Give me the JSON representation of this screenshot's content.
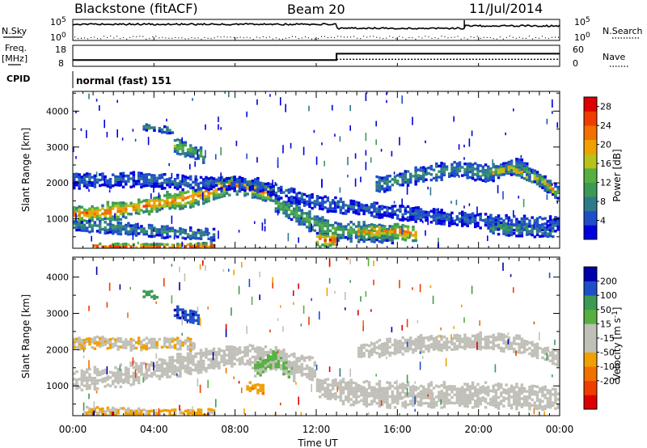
{
  "header": {
    "station": "Blackstone (fitACF)",
    "beam": "Beam 20",
    "date": "11/Jul/2014"
  },
  "strip_labels": {
    "nsky": "N.Sky",
    "nsearch": "N.Search",
    "freq": "Freq.",
    "mhz": "[MHz]",
    "nave": "Nave",
    "cpid": "CPID",
    "cpid_value": "normal (fast) 151"
  },
  "strips": {
    "noise_ticks_left": [
      "10^5",
      "10^0"
    ],
    "noise_ticks_right": [
      "10^5",
      "10^0"
    ],
    "freq_ticks": [
      "18",
      "8"
    ],
    "nave_ticks": [
      "60",
      "0"
    ],
    "freq_profile": {
      "x_hours": [
        0,
        13,
        13,
        24
      ],
      "freq_mhz": [
        11,
        11,
        14,
        14
      ]
    },
    "nave_profile": {
      "x_hours": [
        13,
        24
      ],
      "nave": [
        20,
        20
      ]
    }
  },
  "colors": {
    "power_scale": [
      "#0000dd",
      "#1e4fc8",
      "#2e7a8a",
      "#3c9a55",
      "#55b040",
      "#b8c21a",
      "#f0a000",
      "#f07000",
      "#f03c00",
      "#dd0000"
    ],
    "velocity_scale": [
      "#dd0000",
      "#f03c00",
      "#f07000",
      "#f0a000",
      "#c0c0b8",
      "#c0c0b8",
      "#55b040",
      "#3c9a55",
      "#1e4fc8",
      "#0000aa"
    ]
  },
  "chart_data": [
    {
      "type": "heatmap",
      "variable": "power",
      "ylabel": "Slant Range [km]",
      "xlabel": "Time UT",
      "xlim": [
        0,
        24
      ],
      "ylim": [
        180,
        4550
      ],
      "x_tick_labels": [
        "00:00",
        "04:00",
        "08:00",
        "12:00",
        "16:00",
        "20:00",
        "00:00"
      ],
      "y_ticks": [
        1000,
        2000,
        3000,
        4000
      ],
      "colorbar_label": "Power [dB]",
      "colorbar_ticks": [
        "4",
        "8",
        "12",
        "16",
        "20",
        "24",
        "28"
      ],
      "colorbar_range": [
        0,
        30
      ],
      "bands": [
        {
          "x_hours": [
            0,
            2,
            4,
            6,
            7,
            8,
            10
          ],
          "y_km": [
            1150,
            1250,
            1450,
            1650,
            1850,
            2000,
            1700
          ],
          "half_km": 220,
          "level": 23
        },
        {
          "x_hours": [
            0,
            2,
            4,
            5.5,
            7
          ],
          "y_km": [
            850,
            800,
            700,
            650,
            600
          ],
          "half_km": 140,
          "level": 9
        },
        {
          "x_hours": [
            10,
            11,
            12,
            13,
            14,
            15,
            16
          ],
          "y_km": [
            1500,
            1200,
            900,
            700,
            700,
            650,
            650
          ],
          "half_km": 240,
          "level": 13
        },
        {
          "x_hours": [
            12,
            13
          ],
          "y_km": [
            450,
            450
          ],
          "half_km": 180,
          "level": 27
        },
        {
          "x_hours": [
            14,
            15,
            16,
            17
          ],
          "y_km": [
            650,
            700,
            700,
            600
          ],
          "half_km": 170,
          "level": 24
        },
        {
          "x_hours": [
            0,
            3,
            6,
            9,
            12,
            15,
            18,
            21,
            24
          ],
          "y_km": [
            2100,
            2150,
            2050,
            2000,
            1500,
            1300,
            1100,
            950,
            900
          ],
          "half_km": 180,
          "level": 6
        },
        {
          "x_hours": [
            15,
            17,
            19,
            20.5,
            22,
            23,
            24
          ],
          "y_km": [
            2000,
            2250,
            2450,
            2300,
            2550,
            2150,
            1750
          ],
          "half_km": 200,
          "level": 9
        },
        {
          "x_hours": [
            20.5,
            21.5,
            22.5,
            23.3,
            24
          ],
          "y_km": [
            2300,
            2450,
            2250,
            2050,
            1700
          ],
          "half_km": 120,
          "level": 21
        },
        {
          "x_hours": [
            1,
            3,
            5,
            6,
            7
          ],
          "y_km": [
            280,
            260,
            260,
            270,
            300
          ],
          "half_km": 90,
          "level": 25
        },
        {
          "x_hours": [
            3.5,
            5
          ],
          "y_km": [
            3600,
            3500
          ],
          "half_km": 80,
          "level": 10
        },
        {
          "x_hours": [
            5,
            6.5
          ],
          "y_km": [
            3100,
            2800
          ],
          "half_km": 180,
          "level": 14
        },
        {
          "x_hours": [
            20.5,
            23.8
          ],
          "y_km": [
            800,
            700
          ],
          "half_km": 160,
          "level": 10
        }
      ]
    },
    {
      "type": "heatmap",
      "variable": "velocity",
      "ylabel": "Slant Range [km]",
      "xlabel": "Time UT",
      "xlim": [
        0,
        24
      ],
      "ylim": [
        180,
        4550
      ],
      "x_tick_labels": [
        "00:00",
        "04:00",
        "08:00",
        "12:00",
        "16:00",
        "20:00",
        "00:00"
      ],
      "y_ticks": [
        1000,
        2000,
        3000,
        4000
      ],
      "colorbar_label": "Velocity [m s^-1]",
      "colorbar_ticks": [
        "200",
        "100",
        "50",
        "15",
        "-15",
        "-50",
        "-100",
        "-200"
      ],
      "colorbar_range": [
        -250,
        250
      ],
      "bands": [
        {
          "x_hours": [
            0,
            2,
            4,
            6,
            8,
            10,
            12
          ],
          "y_km": [
            1200,
            1300,
            1500,
            1700,
            1900,
            1800,
            1500
          ],
          "half_km": 260,
          "level": 0
        },
        {
          "x_hours": [
            12,
            14,
            16,
            18,
            20,
            22,
            24
          ],
          "y_km": [
            1000,
            850,
            800,
            800,
            800,
            750,
            700
          ],
          "half_km": 300,
          "level": 0
        },
        {
          "x_hours": [
            14,
            17,
            20,
            22,
            24
          ],
          "y_km": [
            2000,
            2200,
            2300,
            2200,
            1800
          ],
          "half_km": 200,
          "level": 0
        },
        {
          "x_hours": [
            0,
            1.5,
            3,
            4.5,
            6
          ],
          "y_km": [
            2200,
            2250,
            2200,
            2250,
            2200
          ],
          "half_km": 150,
          "level": -40
        },
        {
          "x_hours": [
            0.5,
            3,
            5.5,
            7
          ],
          "y_km": [
            350,
            300,
            300,
            330
          ],
          "half_km": 100,
          "level": -60
        },
        {
          "x_hours": [
            9,
            10,
            11
          ],
          "y_km": [
            1500,
            1800,
            1300
          ],
          "half_km": 200,
          "level": 60
        },
        {
          "x_hours": [
            5,
            6.2
          ],
          "y_km": [
            3100,
            2900
          ],
          "half_km": 150,
          "level": 180
        },
        {
          "x_hours": [
            3.4,
            4.2
          ],
          "y_km": [
            3600,
            3500
          ],
          "half_km": 100,
          "level": 130
        },
        {
          "x_hours": [
            8.5,
            9.5
          ],
          "y_km": [
            1050,
            950
          ],
          "half_km": 120,
          "level": -80
        }
      ]
    }
  ]
}
